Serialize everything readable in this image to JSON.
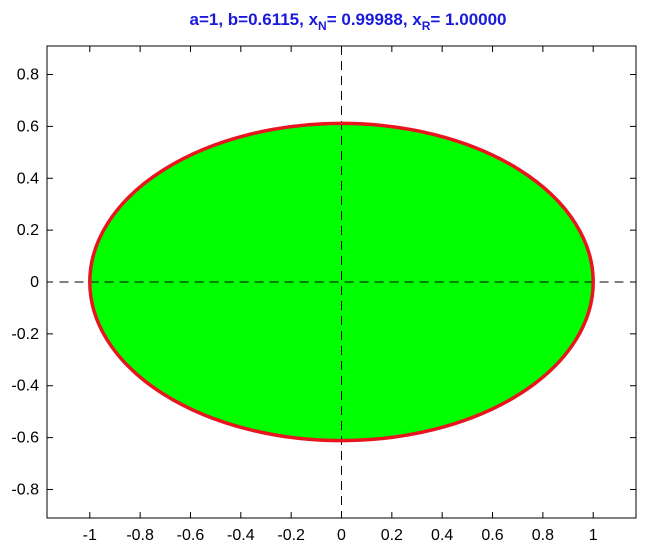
{
  "title": {
    "a_part": "a=1, b=0.6115, x",
    "n_sub": "N",
    "mid_part": "= 0.99988, x",
    "r_sub": "R",
    "end_part": "= 1.00000"
  },
  "colors": {
    "title": "#1a1adc",
    "fill": "#00ff00",
    "outline": "#e8141e",
    "axes": "#000000",
    "crosshair": "#000000"
  },
  "chart_data": {
    "type": "area",
    "shape": "ellipse",
    "a": 1,
    "b": 0.6115,
    "center": [
      0,
      0
    ],
    "xlim": [
      -1.17,
      1.17
    ],
    "ylim": [
      -0.91,
      0.91
    ],
    "xticks": [
      -1,
      -0.8,
      -0.6,
      -0.4,
      -0.2,
      0,
      0.2,
      0.4,
      0.6,
      0.8,
      1
    ],
    "xtick_labels": [
      "-1",
      "-0.8",
      "-0.6",
      "-0.4",
      "-0.2",
      "0",
      "0.2",
      "0.4",
      "0.6",
      "0.8",
      "1"
    ],
    "yticks": [
      0.8,
      0.6,
      0.4,
      0.2,
      0,
      -0.2,
      -0.4,
      -0.6,
      -0.8
    ],
    "ytick_labels": [
      "0.8",
      "0.6",
      "0.4",
      "0.2",
      "0",
      "-0.2",
      "-0.4",
      "-0.6",
      "-0.8"
    ],
    "crosshair_x_range": [
      -1.12,
      1.12
    ],
    "crosshair_y_range": [
      -0.91,
      0.91
    ],
    "grid": false
  }
}
